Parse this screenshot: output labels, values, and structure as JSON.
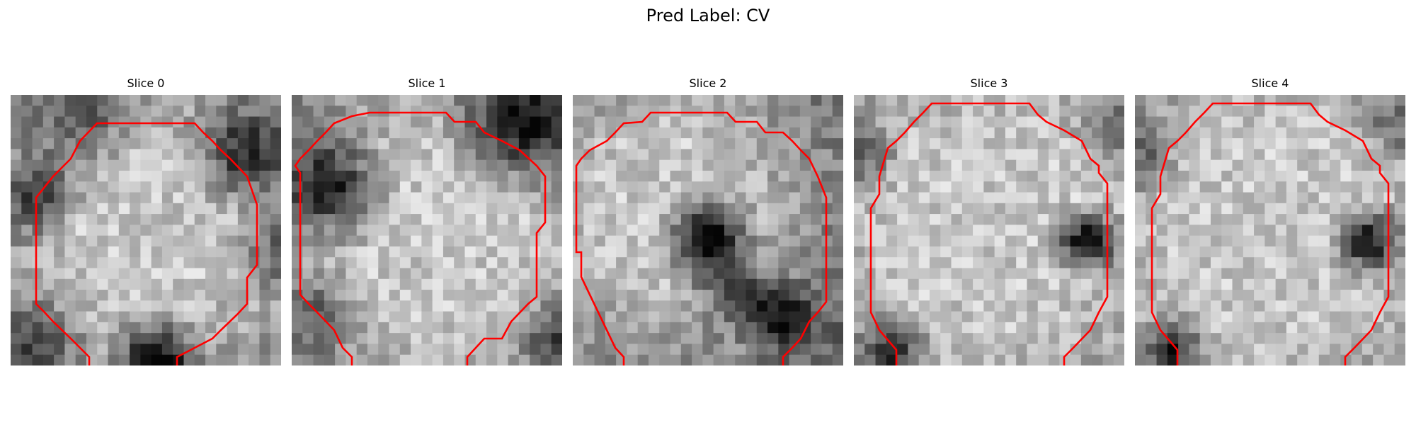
{
  "figure": {
    "title": "Pred Label: CV"
  },
  "panels": [
    {
      "title": "Slice 0",
      "outline_color": "#ff0000"
    },
    {
      "title": "Slice 1",
      "outline_color": "#ff0000"
    },
    {
      "title": "Slice 2",
      "outline_color": "#ff0000"
    },
    {
      "title": "Slice 3",
      "outline_color": "#ff0000"
    },
    {
      "title": "Slice 4",
      "outline_color": "#ff0000"
    }
  ]
}
